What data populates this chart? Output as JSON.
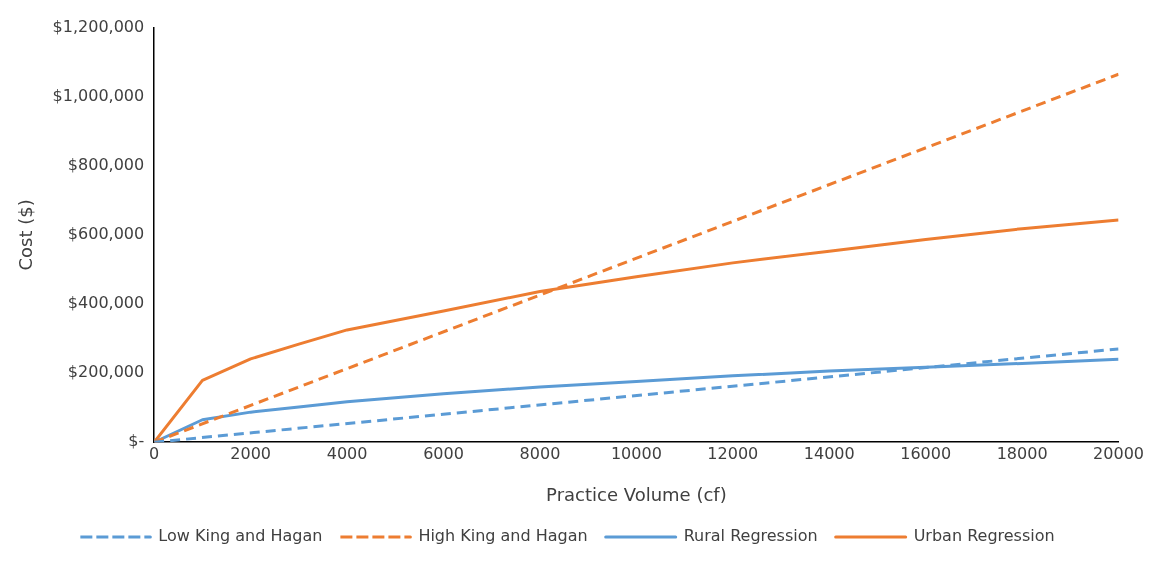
{
  "chart_data": {
    "type": "line",
    "xlabel": "Practice Volume (cf)",
    "ylabel": "Cost ($)",
    "xlim": [
      0,
      20000
    ],
    "xticks": [
      0,
      2000,
      4000,
      6000,
      8000,
      10000,
      12000,
      14000,
      16000,
      18000,
      20000
    ],
    "ylim": [
      0,
      1200000
    ],
    "yticks": [
      {
        "value": 0,
        "label": "$-"
      },
      {
        "value": 200000,
        "label": "$200,000"
      },
      {
        "value": 400000,
        "label": "$400,000"
      },
      {
        "value": 600000,
        "label": "$600,000"
      },
      {
        "value": 800000,
        "label": "$800,000"
      },
      {
        "value": 1000000,
        "label": "$1,000,000"
      },
      {
        "value": 1200000,
        "label": "$1,200,000"
      }
    ],
    "grid": false,
    "legend": "bottom",
    "marker": "none",
    "series": [
      {
        "name": "Low King and Hagan",
        "color": "#5b9bd5",
        "line_style": "dashed",
        "x": [
          0,
          20000
        ],
        "values": [
          0,
          270000
        ]
      },
      {
        "name": "High King and Hagan",
        "color": "#ed7d31",
        "line_style": "dashed",
        "x": [
          0,
          20000
        ],
        "values": [
          0,
          1065000
        ]
      },
      {
        "name": "Rural Regression",
        "color": "#5b9bd5",
        "line_style": "solid",
        "x": [
          0,
          1000,
          2000,
          3000,
          4000,
          6000,
          8000,
          10000,
          12000,
          14000,
          16000,
          18000,
          20000
        ],
        "values": [
          0,
          65000,
          87000,
          102000,
          117000,
          140000,
          160000,
          176000,
          192000,
          206000,
          217000,
          228000,
          240000
        ]
      },
      {
        "name": "Urban Regression",
        "color": "#ed7d31",
        "line_style": "solid",
        "x": [
          0,
          1000,
          2000,
          3000,
          4000,
          6000,
          8000,
          10000,
          12000,
          14000,
          16000,
          18000,
          20000
        ],
        "values": [
          0,
          179000,
          241000,
          284000,
          325000,
          380000,
          436000,
          479000,
          519000,
          553000,
          587000,
          618000,
          643000
        ]
      }
    ]
  }
}
